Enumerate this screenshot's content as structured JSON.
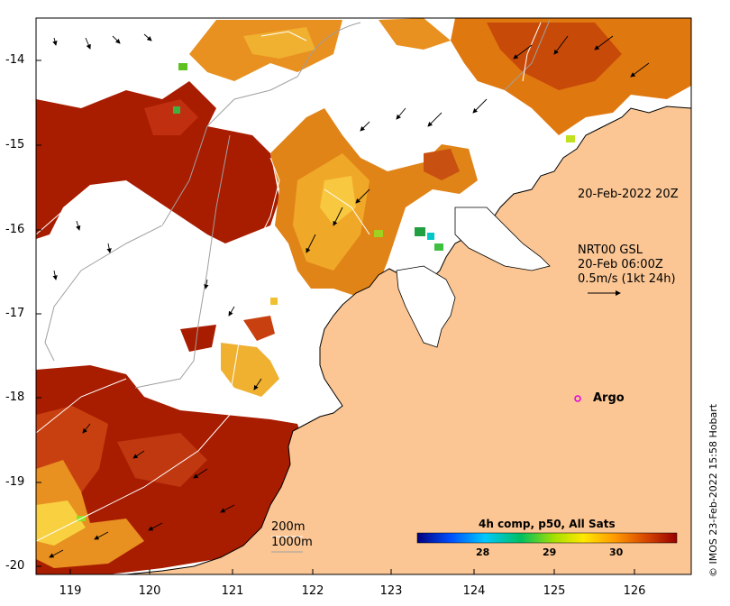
{
  "map": {
    "x_ticks": [
      "119",
      "120",
      "121",
      "122",
      "123",
      "124",
      "125",
      "126"
    ],
    "y_ticks": [
      "-14",
      "-15",
      "-16",
      "-17",
      "-18",
      "-19",
      "-20"
    ],
    "lon_range": [
      118.6,
      126.8
    ],
    "lat_range": [
      -20.15,
      -13.5
    ]
  },
  "labels": {
    "sst_time": "20-Feb-2022 20Z",
    "current_product": "NRT00 GSL",
    "current_time": "20-Feb 06:00Z",
    "current_scale": "0.5m/s (1kt 24h)",
    "argo": "Argo",
    "contour_200": "200m",
    "contour_1000": "1000m",
    "colorbar_title": "4h comp, p50, All Sats",
    "credit": "© IMOS 23-Feb-2022 15:58 Hobart"
  },
  "colorbar": {
    "ticks": [
      "28",
      "29",
      "30"
    ],
    "tick_values": [
      28,
      29,
      30
    ],
    "range": [
      27.0,
      31.0
    ]
  },
  "argo_float": {
    "lon": 125.3,
    "lat": -18.0
  },
  "colors": {
    "land": "#fbc694",
    "ocean_no_data": "#ffffff",
    "argo_marker": "#e000e0",
    "sst_hot": "#a81c00"
  }
}
